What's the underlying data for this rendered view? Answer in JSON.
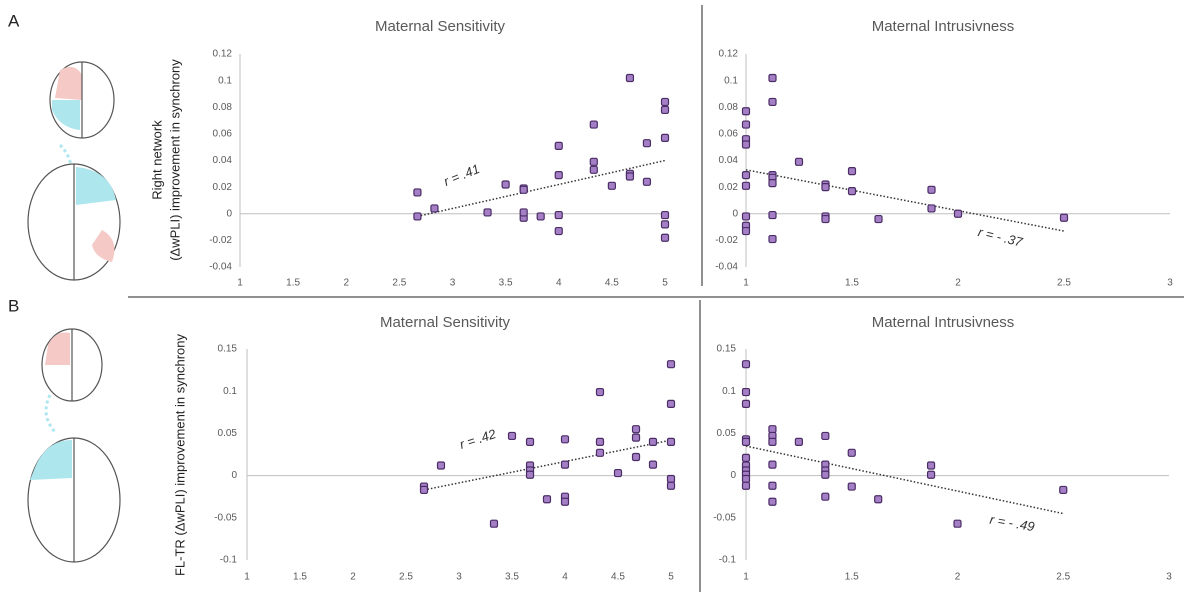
{
  "panel_labels": [
    "A",
    "B"
  ],
  "chart_data": [
    {
      "type": "scatter",
      "title": "Maternal Sensitivity",
      "ylabel": [
        "Right network",
        "(ΔwPLI) improvement in  synchrony"
      ],
      "xlim": [
        1,
        5
      ],
      "ylim": [
        -0.04,
        0.12
      ],
      "xticks": [
        1,
        1.5,
        2,
        2.5,
        3,
        3.5,
        4,
        4.5,
        5
      ],
      "yticks": [
        -0.04,
        -0.02,
        0,
        0.02,
        0.04,
        0.06,
        0.08,
        0.1,
        0.12
      ],
      "color": "#a47fc6",
      "x": [
        2.67,
        2.67,
        2.83,
        3.33,
        3.5,
        3.67,
        3.67,
        3.67,
        3.67,
        3.83,
        4,
        4,
        4,
        4,
        4.33,
        4.33,
        4.33,
        4.5,
        4.67,
        4.67,
        4.67,
        4.83,
        4.83,
        5,
        5,
        5,
        5,
        5,
        5
      ],
      "values": [
        0.016,
        -0.002,
        0.004,
        0.001,
        0.022,
        0.019,
        0.018,
        -0.003,
        0.001,
        -0.002,
        0.051,
        0.029,
        -0.001,
        -0.013,
        0.067,
        0.039,
        0.033,
        0.021,
        0.102,
        0.03,
        0.028,
        0.053,
        0.024,
        0.084,
        0.078,
        0.057,
        -0.001,
        -0.008,
        -0.018
      ],
      "trendline": {
        "x": [
          2.67,
          5
        ],
        "y": [
          -0.002,
          0.04
        ]
      },
      "annotation": "r = .41"
    },
    {
      "type": "scatter",
      "title": "Maternal Intrusivness",
      "xlim": [
        1,
        3
      ],
      "ylim": [
        -0.04,
        0.12
      ],
      "xticks": [
        1,
        1.5,
        2,
        2.5,
        3
      ],
      "yticks": [
        -0.04,
        -0.02,
        0,
        0.02,
        0.04,
        0.06,
        0.08,
        0.1,
        0.12
      ],
      "color": "#a47fc6",
      "x": [
        1,
        1,
        1,
        1,
        1,
        1,
        1,
        1,
        1,
        1.125,
        1.125,
        1.125,
        1.125,
        1.125,
        1.125,
        1.125,
        1.25,
        1.375,
        1.375,
        1.375,
        1.375,
        1.5,
        1.5,
        1.625,
        1.875,
        1.875,
        2,
        2.5
      ],
      "values": [
        0.077,
        0.067,
        0.056,
        0.052,
        0.029,
        0.021,
        -0.002,
        -0.009,
        -0.013,
        0.102,
        0.084,
        0.029,
        0.027,
        0.023,
        -0.001,
        -0.019,
        0.039,
        0.022,
        0.02,
        -0.002,
        -0.004,
        0.032,
        0.017,
        -0.004,
        0.018,
        0.004,
        0,
        -0.003
      ],
      "trendline": {
        "x": [
          1,
          2.5
        ],
        "y": [
          0.033,
          -0.013
        ]
      },
      "annotation": "r = - .37"
    },
    {
      "type": "scatter",
      "title": "Maternal Sensitivity",
      "ylabel": [
        "FL-TR (ΔwPLI) improvement in  synchrony"
      ],
      "xlim": [
        1,
        5
      ],
      "ylim": [
        -0.1,
        0.15
      ],
      "xticks": [
        1,
        1.5,
        2,
        2.5,
        3,
        3.5,
        4,
        4.5,
        5
      ],
      "yticks": [
        -0.1,
        -0.05,
        0,
        0.05,
        0.1,
        0.15
      ],
      "color": "#a47fc6",
      "x": [
        2.67,
        2.67,
        2.83,
        3.33,
        3.5,
        3.67,
        3.67,
        3.67,
        3.67,
        3.83,
        4,
        4,
        4,
        4,
        4.33,
        4.33,
        4.33,
        4.5,
        4.67,
        4.67,
        4.67,
        4.83,
        4.83,
        5,
        5,
        5,
        5,
        5
      ],
      "values": [
        -0.013,
        -0.017,
        0.012,
        -0.057,
        0.047,
        0.04,
        0.012,
        0.006,
        0.001,
        -0.028,
        0.043,
        0.013,
        -0.025,
        -0.031,
        0.099,
        0.04,
        0.027,
        0.003,
        0.055,
        0.045,
        0.022,
        0.04,
        0.013,
        0.132,
        0.085,
        0.04,
        -0.004,
        -0.012
      ],
      "trendline": {
        "x": [
          2.67,
          5
        ],
        "y": [
          -0.017,
          0.042
        ]
      },
      "annotation": "r = .42"
    },
    {
      "type": "scatter",
      "title": "Maternal Intrusivness",
      "xlim": [
        1,
        3
      ],
      "ylim": [
        -0.1,
        0.15
      ],
      "xticks": [
        1,
        1.5,
        2,
        2.5,
        3
      ],
      "yticks": [
        -0.1,
        -0.05,
        0,
        0.05,
        0.1,
        0.15
      ],
      "color": "#a47fc6",
      "x": [
        1,
        1,
        1,
        1,
        1,
        1,
        1,
        1,
        1,
        1,
        1,
        1.125,
        1.125,
        1.125,
        1.125,
        1.125,
        1.125,
        1.25,
        1.375,
        1.375,
        1.375,
        1.375,
        1.375,
        1.5,
        1.5,
        1.625,
        1.875,
        1.875,
        2,
        2.5
      ],
      "values": [
        0.132,
        0.099,
        0.085,
        0.043,
        0.04,
        0.021,
        0.012,
        0.006,
        0.001,
        -0.004,
        -0.012,
        0.055,
        0.047,
        0.04,
        0.013,
        -0.012,
        -0.031,
        0.04,
        0.047,
        0.013,
        0.006,
        0.001,
        -0.025,
        0.027,
        -0.013,
        -0.028,
        0.012,
        0.001,
        -0.057,
        -0.017
      ],
      "trendline": {
        "x": [
          1,
          2.5
        ],
        "y": [
          0.035,
          -0.045
        ]
      },
      "annotation": "r = - .49"
    }
  ]
}
